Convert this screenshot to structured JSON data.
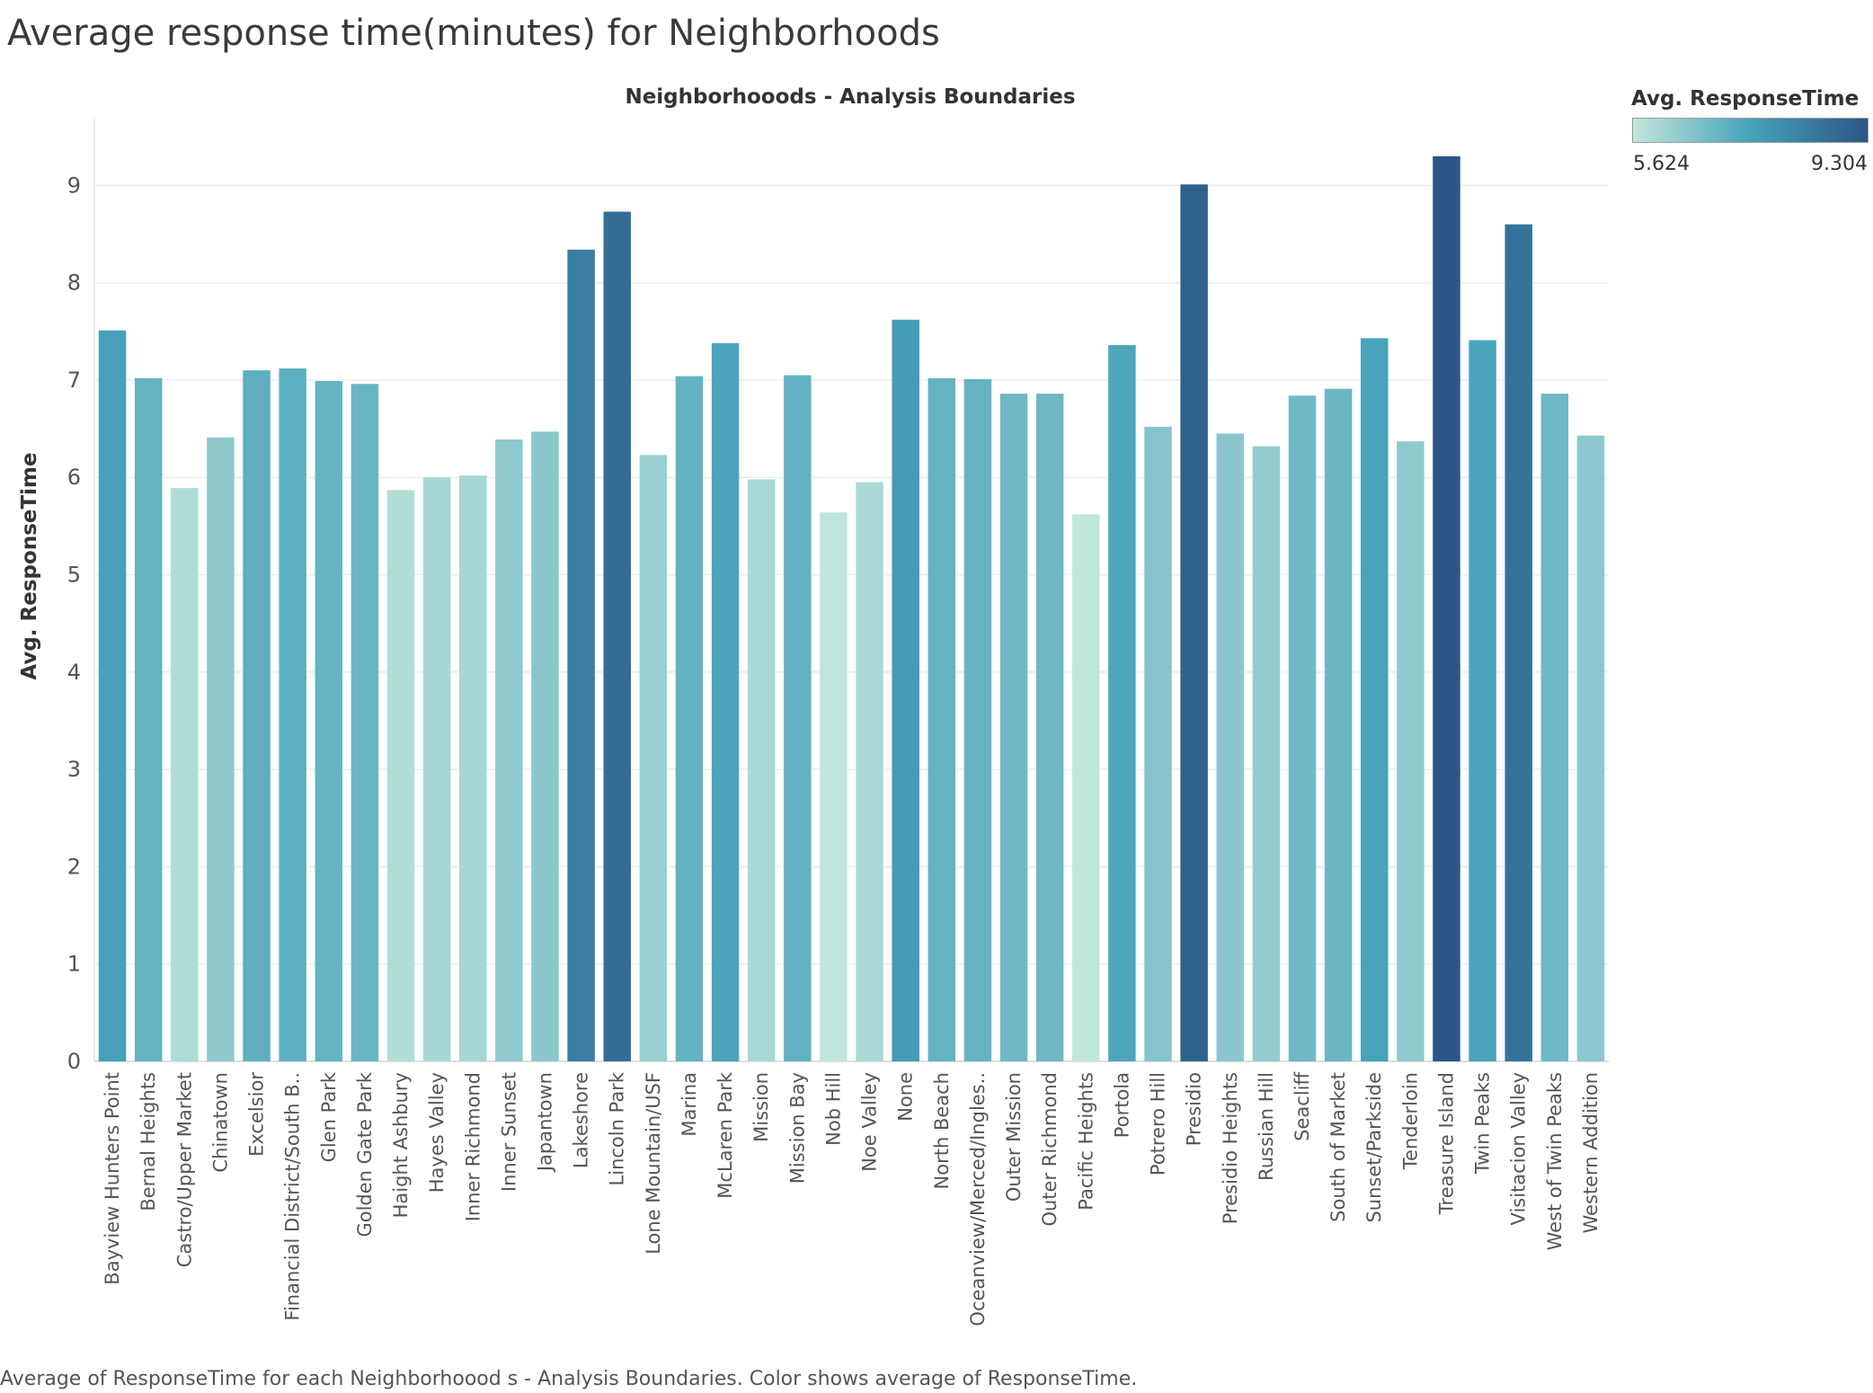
{
  "page": {
    "title": "Average response time(minutes) for Neighborhoods",
    "caption": "Average of ResponseTime for each Neighborhoood s - Analysis Boundaries.  Color shows average of ResponseTime."
  },
  "legend": {
    "title": "Avg. ResponseTime",
    "min_label": "5.624",
    "max_label": "9.304",
    "min_value": 5.624,
    "max_value": 9.304,
    "color_low": "#c1e6dc",
    "color_mid": "#47a2ba",
    "color_high": "#2c5686"
  },
  "chart_data": {
    "type": "bar",
    "title": "Neighborhooods - Analysis Boundaries",
    "xlabel": "",
    "ylabel": "Avg. ResponseTime",
    "ylim": [
      0,
      9.7
    ],
    "yticks": [
      0,
      1,
      2,
      3,
      4,
      5,
      6,
      7,
      8,
      9
    ],
    "grid": true,
    "legend_position": "top-right",
    "categories": [
      "Bayview Hunters Point",
      "Bernal Heights",
      "Castro/Upper Market",
      "Chinatown",
      "Excelsior",
      "Financial District/South B..",
      "Glen Park",
      "Golden Gate Park",
      "Haight Ashbury",
      "Hayes Valley",
      "Inner Richmond",
      "Inner Sunset",
      "Japantown",
      "Lakeshore",
      "Lincoln Park",
      "Lone Mountain/USF",
      "Marina",
      "McLaren Park",
      "Mission",
      "Mission Bay",
      "Nob Hill",
      "Noe Valley",
      "None",
      "North Beach",
      "Oceanview/Merced/Ingles..",
      "Outer Mission",
      "Outer Richmond",
      "Pacific Heights",
      "Portola",
      "Potrero Hill",
      "Presidio",
      "Presidio Heights",
      "Russian Hill",
      "Seacliff",
      "South of Market",
      "Sunset/Parkside",
      "Tenderloin",
      "Treasure Island",
      "Twin Peaks",
      "Visitacion Valley",
      "West of Twin Peaks",
      "Western Addition"
    ],
    "values": [
      7.51,
      7.02,
      5.89,
      6.41,
      7.1,
      7.12,
      6.99,
      6.96,
      5.87,
      6.0,
      6.02,
      6.39,
      6.47,
      8.34,
      8.73,
      6.23,
      7.04,
      7.38,
      5.98,
      7.05,
      5.64,
      5.95,
      7.62,
      7.02,
      7.01,
      6.86,
      6.86,
      5.62,
      7.36,
      6.52,
      9.01,
      6.45,
      6.32,
      6.84,
      6.91,
      7.43,
      6.37,
      9.3,
      7.41,
      8.6,
      6.86,
      6.43
    ]
  }
}
